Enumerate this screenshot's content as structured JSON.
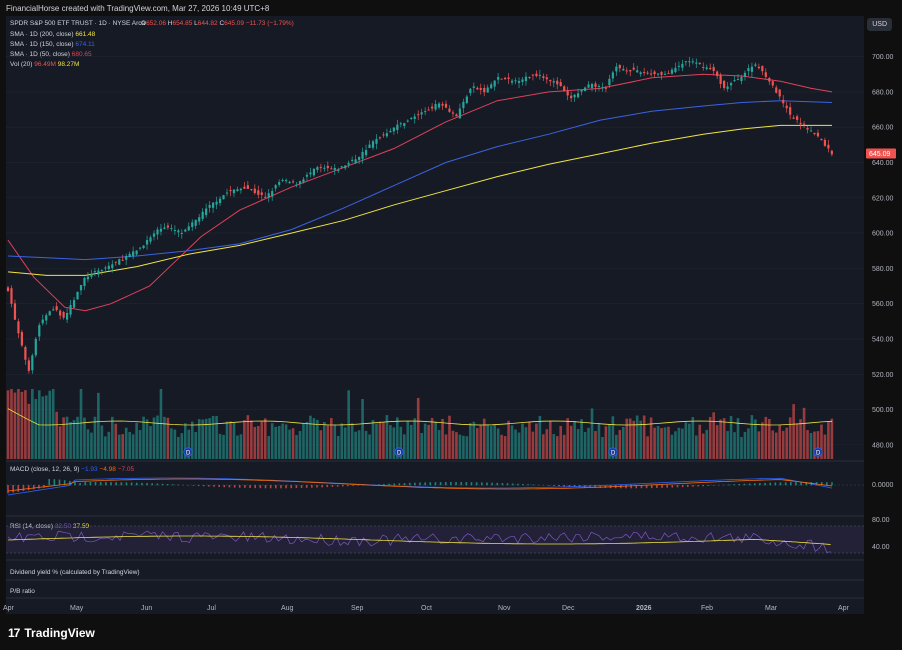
{
  "header": {
    "attribution": "FinancialHorse created with TradingView.com, Mar 27, 2026 10:49 UTC+8",
    "currency": "USD"
  },
  "legend": {
    "title": "SPDR S&P 500 ETF TRUST · 1D · NYSE Arca",
    "ohlc": [
      {
        "label": "O",
        "value": "652.06"
      },
      {
        "label": "H",
        "value": "654.85"
      },
      {
        "label": "L",
        "value": "644.82"
      },
      {
        "label": "C",
        "value": "645.09"
      }
    ],
    "change": "−11.73 (−1.79%)",
    "sma200": {
      "label": "SMA · 1D (200, close)",
      "value": "661.48",
      "color": "#f0e442"
    },
    "sma150": {
      "label": "SMA · 1D (150, close)",
      "value": "674.11",
      "color": "#3b63e0"
    },
    "sma50": {
      "label": "SMA · 1D (50, close)",
      "value": "680.65",
      "color": "#e0415a"
    },
    "vol": {
      "label": "Vol (20)",
      "value1": "96.49M",
      "value2": "98.27M"
    }
  },
  "chart_data": {
    "type": "candlestick",
    "price_axis": {
      "ticks": [
        "700.00",
        "680.00",
        "660.00",
        "640.00",
        "620.00",
        "600.00",
        "580.00",
        "560.00",
        "540.00",
        "520.00",
        "500.00",
        "480.00"
      ],
      "range": [
        472,
        706
      ]
    },
    "last_price": "645.09",
    "months": [
      "Apr",
      "May",
      "Jun",
      "Jul",
      "Aug",
      "Sep",
      "Oct",
      "Nov",
      "Dec",
      "2026",
      "Feb",
      "Mar",
      "Apr"
    ],
    "close_path": [
      [
        0,
        568
      ],
      [
        4,
        543
      ],
      [
        8,
        522
      ],
      [
        12,
        548
      ],
      [
        17,
        558
      ],
      [
        22,
        552
      ],
      [
        30,
        575
      ],
      [
        40,
        582
      ],
      [
        50,
        590
      ],
      [
        60,
        604
      ],
      [
        68,
        600
      ],
      [
        78,
        615
      ],
      [
        85,
        623
      ],
      [
        92,
        626
      ],
      [
        100,
        620
      ],
      [
        106,
        630
      ],
      [
        112,
        628
      ],
      [
        120,
        637
      ],
      [
        128,
        636
      ],
      [
        136,
        643
      ],
      [
        142,
        652
      ],
      [
        150,
        660
      ],
      [
        158,
        666
      ],
      [
        168,
        674
      ],
      [
        174,
        666
      ],
      [
        180,
        683
      ],
      [
        185,
        680
      ],
      [
        190,
        688
      ],
      [
        196,
        686
      ],
      [
        206,
        690
      ],
      [
        214,
        684
      ],
      [
        218,
        676
      ],
      [
        226,
        684
      ],
      [
        232,
        682
      ],
      [
        236,
        694
      ],
      [
        246,
        691
      ],
      [
        256,
        690
      ],
      [
        264,
        698
      ],
      [
        274,
        692
      ],
      [
        278,
        682
      ],
      [
        284,
        688
      ],
      [
        290,
        696
      ],
      [
        294,
        690
      ],
      [
        300,
        676
      ],
      [
        304,
        666
      ],
      [
        310,
        660
      ],
      [
        315,
        654
      ],
      [
        320,
        645
      ]
    ],
    "sma50_path": [
      [
        0,
        596
      ],
      [
        10,
        575
      ],
      [
        22,
        558
      ],
      [
        30,
        556
      ],
      [
        40,
        560
      ],
      [
        55,
        570
      ],
      [
        65,
        584
      ],
      [
        75,
        598
      ],
      [
        90,
        613
      ],
      [
        110,
        626
      ],
      [
        130,
        637
      ],
      [
        150,
        648
      ],
      [
        170,
        663
      ],
      [
        190,
        675
      ],
      [
        210,
        680
      ],
      [
        230,
        682
      ],
      [
        250,
        688
      ],
      [
        270,
        690
      ],
      [
        285,
        689
      ],
      [
        300,
        686
      ],
      [
        312,
        682
      ],
      [
        320,
        680
      ]
    ],
    "sma150_path": [
      [
        0,
        587
      ],
      [
        15,
        586
      ],
      [
        30,
        585
      ],
      [
        50,
        587
      ],
      [
        70,
        590
      ],
      [
        90,
        594
      ],
      [
        110,
        602
      ],
      [
        130,
        614
      ],
      [
        150,
        627
      ],
      [
        170,
        640
      ],
      [
        190,
        649
      ],
      [
        210,
        656
      ],
      [
        230,
        664
      ],
      [
        250,
        669
      ],
      [
        270,
        672
      ],
      [
        285,
        674
      ],
      [
        300,
        675
      ],
      [
        320,
        674
      ]
    ],
    "sma200_path": [
      [
        0,
        578
      ],
      [
        15,
        576
      ],
      [
        30,
        576
      ],
      [
        50,
        581
      ],
      [
        70,
        588
      ],
      [
        90,
        593
      ],
      [
        110,
        600
      ],
      [
        130,
        607
      ],
      [
        150,
        616
      ],
      [
        170,
        624
      ],
      [
        190,
        632
      ],
      [
        210,
        639
      ],
      [
        230,
        645
      ],
      [
        250,
        651
      ],
      [
        270,
        656
      ],
      [
        285,
        659
      ],
      [
        300,
        661
      ],
      [
        320,
        661
      ]
    ],
    "volume_axis": {
      "ticks": [
        "500.00",
        "480.00"
      ]
    },
    "macd": {
      "label": "MACD (close, 12, 26, 9)",
      "values": [
        "−1.93",
        "−4.98",
        "−7.05"
      ],
      "colors": [
        "#2962ff",
        "#ff6d00",
        "#e0415a"
      ],
      "axis_tick": "0.0000"
    },
    "rsi": {
      "label": "RSI (14, close)",
      "values": [
        "32.50",
        "37.59"
      ],
      "axis_ticks": [
        "80.00",
        "40.00"
      ]
    },
    "extra_panes": [
      "Dividend yield % (calculated by TradingView)",
      "P/B ratio"
    ],
    "event_marks": [
      {
        "label": "D"
      },
      {
        "label": "D"
      },
      {
        "label": "D"
      },
      {
        "label": "D"
      }
    ]
  },
  "colors": {
    "up": "#26a69a",
    "down": "#ef5350",
    "bg": "#161a25",
    "grid": "#222632"
  },
  "footer": {
    "brand": "TradingView",
    "mark": "17"
  }
}
